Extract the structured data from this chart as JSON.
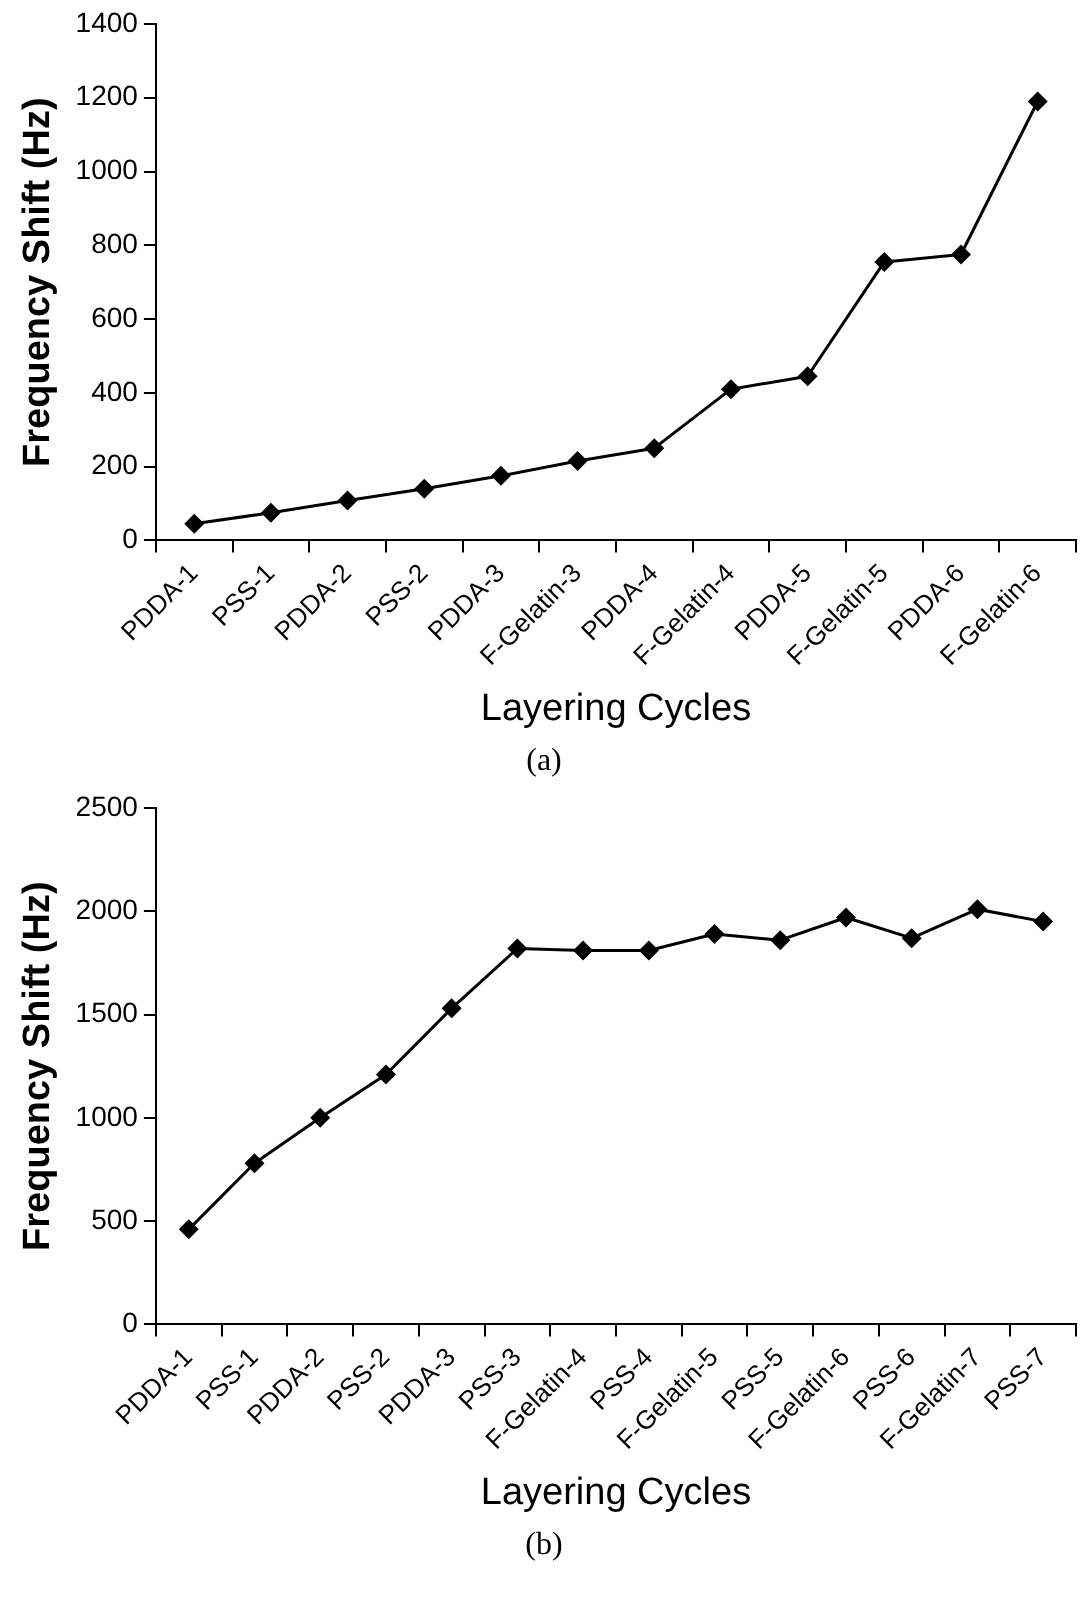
{
  "chart_data": [
    {
      "type": "line",
      "xlabel": "Layering Cycles",
      "ylabel": "Frequency Shift (Hz)",
      "annotations": [
        "(a)"
      ],
      "categories": [
        "PDDA-1",
        "PSS-1",
        "PDDA-2",
        "PSS-2",
        "PDDA-3",
        "F-Gelatin-3",
        "PDDA-4",
        "F-Gelatin-4",
        "PDDA-5",
        "F-Gelatin-5",
        "PDDA-6",
        "F-Gelatin-6"
      ],
      "series": [
        {
          "color": "#000000",
          "values": [
            45,
            75,
            108,
            140,
            175,
            215,
            250,
            410,
            445,
            755,
            775,
            1190
          ]
        }
      ],
      "ylim": [
        0,
        1400
      ],
      "yticks": [
        0,
        200,
        400,
        600,
        800,
        1000,
        1200,
        1400
      ],
      "grid": false,
      "legend": false,
      "marker": "diamond",
      "line_style": "solid"
    },
    {
      "type": "line",
      "xlabel": "Layering Cycles",
      "ylabel": "Frequency Shift (Hz)",
      "annotations": [
        "(b)"
      ],
      "categories": [
        "PDDA-1",
        "PSS-1",
        "PDDA-2",
        "PSS-2",
        "PDDA-3",
        "PSS-3",
        "F-Gelatin-4",
        "PSS-4",
        "F-Gelatin-5",
        "PSS-5",
        "F-Gelatin-6",
        "PSS-6",
        "F-Gelatin-7",
        "PSS-7"
      ],
      "series": [
        {
          "color": "#000000",
          "values": [
            460,
            780,
            1000,
            1210,
            1530,
            1820,
            1810,
            1810,
            1890,
            1860,
            1970,
            1870,
            2010,
            1950
          ]
        }
      ],
      "ylim": [
        0,
        2500
      ],
      "yticks": [
        0,
        500,
        1000,
        1500,
        2000,
        2500
      ],
      "grid": false,
      "legend": false,
      "marker": "diamond",
      "line_style": "solid"
    }
  ]
}
